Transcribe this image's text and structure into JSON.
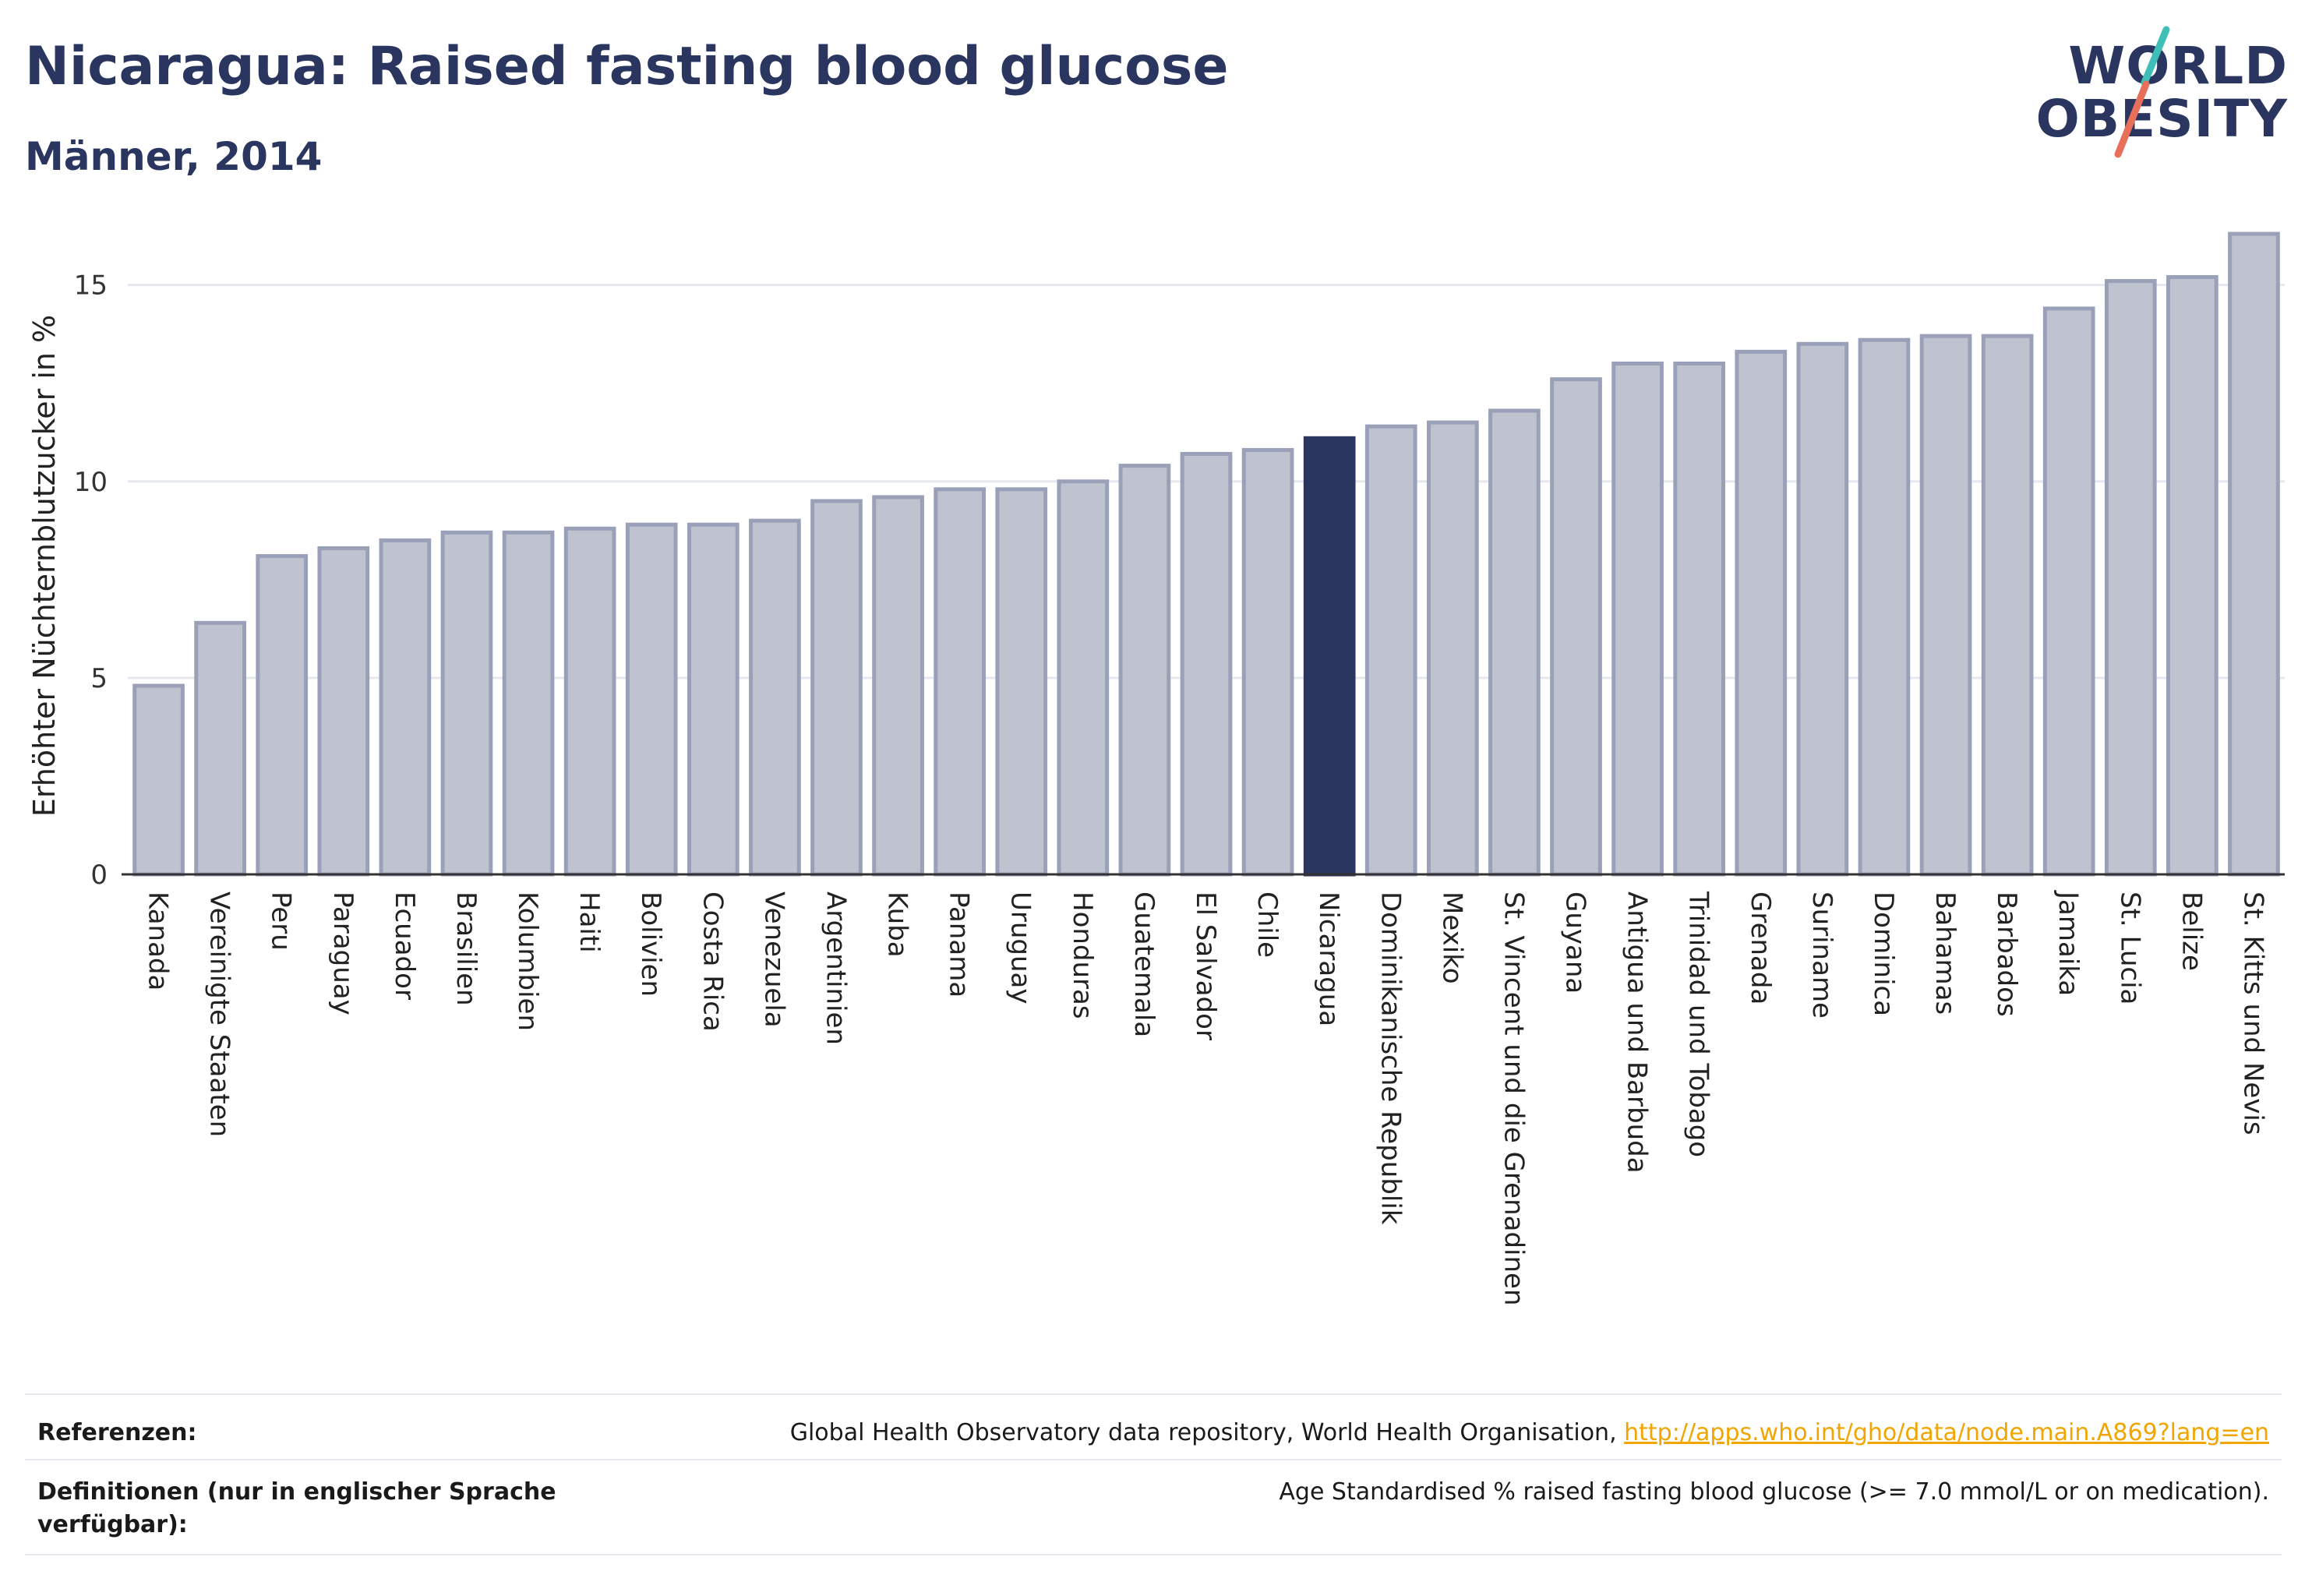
{
  "header": {
    "title": "Nicaragua: Raised fasting blood glucose",
    "subtitle": "Männer, 2014"
  },
  "logo": {
    "line1": "WORLD",
    "line2": "OBESITY",
    "accent_teal": "#3fbfb7",
    "accent_coral": "#e8705a"
  },
  "colors": {
    "bar_default": "#bfc3d0",
    "bar_border": "#9aa0b8",
    "bar_highlight": "#2a3560",
    "text": "#2a3560",
    "grid": "#e6e8ef",
    "link": "#f0a500"
  },
  "chart_data": {
    "type": "bar",
    "ylabel": "Erhöhter Nüchternblutzucker in %",
    "ylim": [
      0,
      16.5
    ],
    "yticks": [
      0,
      5,
      10,
      15
    ],
    "grid": true,
    "highlight": "Nicaragua",
    "categories": [
      "Kanada",
      "Vereinigte Staaten",
      "Peru",
      "Paraguay",
      "Ecuador",
      "Brasilien",
      "Kolumbien",
      "Haiti",
      "Bolivien",
      "Costa Rica",
      "Venezuela",
      "Argentinien",
      "Kuba",
      "Panama",
      "Uruguay",
      "Honduras",
      "Guatemala",
      "El Salvador",
      "Chile",
      "Nicaragua",
      "Dominikanische Republik",
      "Mexiko",
      "St. Vincent und die Grenadinen",
      "Guyana",
      "Antigua und Barbuda",
      "Trinidad und Tobago",
      "Grenada",
      "Suriname",
      "Dominica",
      "Bahamas",
      "Barbados",
      "Jamaika",
      "St. Lucia",
      "Belize",
      "St. Kitts und Nevis"
    ],
    "values": [
      4.8,
      6.4,
      8.1,
      8.3,
      8.5,
      8.7,
      8.7,
      8.8,
      8.9,
      8.9,
      9.0,
      9.5,
      9.6,
      9.8,
      9.8,
      10.0,
      10.4,
      10.7,
      10.8,
      11.1,
      11.4,
      11.5,
      11.8,
      12.6,
      13.0,
      13.0,
      13.3,
      13.5,
      13.6,
      13.7,
      13.7,
      14.4,
      15.1,
      15.2,
      16.3
    ]
  },
  "footer": {
    "references_label": "Referenzen:",
    "references_text": "Global Health Observatory data repository, World Health Organisation, ",
    "references_link": "http://apps.who.int/gho/data/node.main.A869?lang=en",
    "definitions_label": "Definitionen (nur in englischer Sprache verfügbar):",
    "definitions_text": "Age Standardised % raised fasting blood glucose (>= 7.0 mmol/L or on medication)."
  }
}
